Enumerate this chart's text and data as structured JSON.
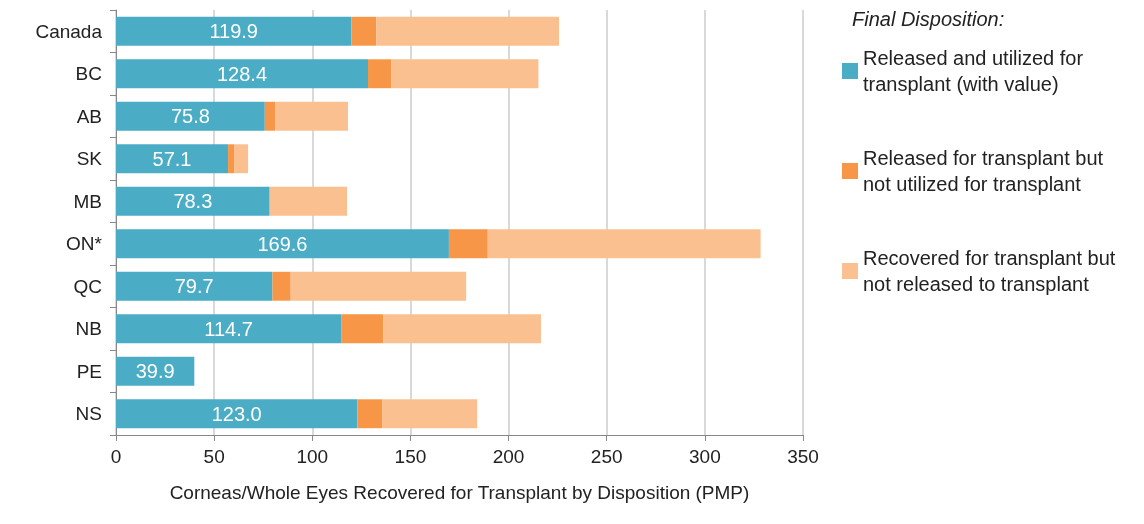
{
  "chart_data": {
    "type": "bar",
    "orientation": "horizontal",
    "stacked": true,
    "xlabel": "Corneas/Whole Eyes Recovered for Transplant by Disposition (PMP)",
    "legend_title": "Final Disposition:",
    "categories": [
      "Canada",
      "BC",
      "AB",
      "SK",
      "MB",
      "ON*",
      "QC",
      "NB",
      "PE",
      "NS"
    ],
    "series": [
      {
        "name": "Released and utilized for transplant (with value)",
        "color": "#4bacc6",
        "values": [
          119.9,
          128.4,
          75.8,
          57.1,
          78.3,
          169.6,
          79.7,
          114.7,
          39.9,
          123.0
        ],
        "value_labels": [
          "119.9",
          "128.4",
          "75.8",
          "57.1",
          "78.3",
          "169.6",
          "79.7",
          "114.7",
          "39.9",
          "123.0"
        ]
      },
      {
        "name": "Released for transplant but not utilized for transplant",
        "color": "#f79646",
        "values": [
          12.7,
          11.8,
          5.3,
          3.3,
          0,
          19.8,
          9.3,
          21.5,
          0,
          12.8
        ]
      },
      {
        "name": "Recovered for transplant but not released to transplant",
        "color": "#fac090",
        "values": [
          93.1,
          75.0,
          37.1,
          6.9,
          39.4,
          139.0,
          89.4,
          80.3,
          0,
          48.2
        ]
      }
    ],
    "xlim": [
      0,
      350
    ],
    "xticks": [
      0,
      50,
      100,
      150,
      200,
      250,
      300,
      350
    ],
    "grid": "x",
    "legend": "right"
  }
}
